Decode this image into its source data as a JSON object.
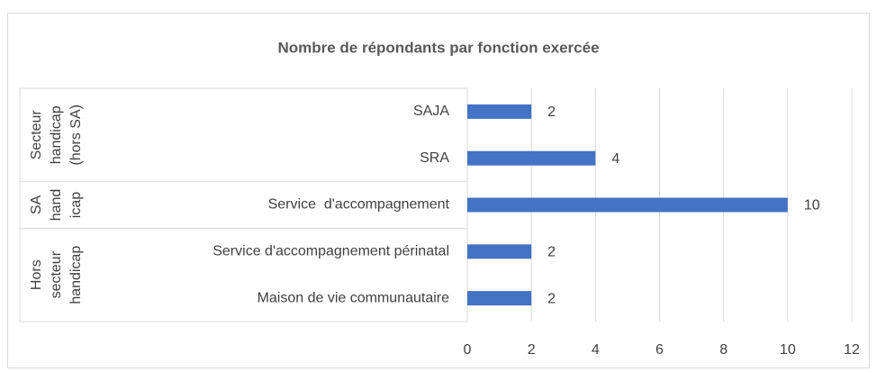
{
  "chart_data": {
    "type": "bar",
    "orientation": "horizontal",
    "title": "Nombre de répondants par fonction exercée",
    "categories": [
      "SAJA",
      "SRA",
      "Service  d'accompagnement",
      "Service d'accompagnement périnatal",
      "Maison de vie communautaire"
    ],
    "values": [
      2,
      4,
      10,
      2,
      2
    ],
    "groups": [
      {
        "label": [
          "Secteur",
          "handicap",
          "(hors SA)"
        ],
        "size": 2
      },
      {
        "label": [
          "SA",
          "hand",
          "icap"
        ],
        "size": 1
      },
      {
        "label": [
          "Hors",
          "secteur",
          "handicap"
        ],
        "size": 2
      }
    ],
    "color": "#4472c4",
    "xlim": [
      0,
      12
    ],
    "xticks": [
      0,
      2,
      4,
      6,
      8,
      10,
      12
    ],
    "grid": true
  }
}
